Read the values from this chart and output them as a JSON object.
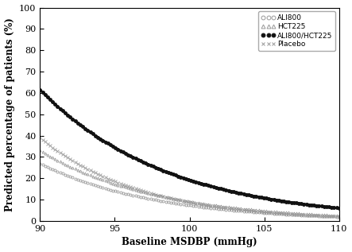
{
  "title": "",
  "xlabel": "Baseline MSDBP (mmHg)",
  "ylabel": "Predicted percentage of patients (%)",
  "xlim": [
    90,
    110
  ],
  "ylim": [
    0,
    100
  ],
  "xticks": [
    90,
    95,
    100,
    105,
    110
  ],
  "yticks": [
    0,
    10,
    20,
    30,
    40,
    50,
    60,
    70,
    80,
    90,
    100
  ],
  "series": [
    {
      "label": "ALI800",
      "marker": "o",
      "color": "#999999",
      "linewidth": 0,
      "markersize": 2.2,
      "y_at_90": 27.0,
      "decay": 0.13,
      "filled": false,
      "zorder": 2
    },
    {
      "label": "HCT225",
      "marker": "^",
      "color": "#999999",
      "linewidth": 0,
      "markersize": 2.2,
      "y_at_90": 33.0,
      "decay": 0.128,
      "filled": false,
      "zorder": 2
    },
    {
      "label": "ALI800/HCT225",
      "marker": "o",
      "color": "#111111",
      "linewidth": 2.2,
      "markersize": 2.5,
      "y_at_90": 61.5,
      "decay": 0.116,
      "filled": true,
      "zorder": 4
    },
    {
      "label": "Placebo",
      "marker": "x",
      "color": "#999999",
      "linewidth": 0,
      "markersize": 2.2,
      "y_at_90": 39.0,
      "decay": 0.148,
      "filled": false,
      "zorder": 2
    }
  ],
  "draw_order": [
    "ALI800",
    "HCT225",
    "Placebo",
    "ALI800/HCT225"
  ],
  "legend_loc": "upper right",
  "background_color": "#ffffff",
  "fontsize_axis_label": 8.5,
  "fontsize_tick": 8,
  "fontsize_legend": 6.5,
  "num_marker_points": 120
}
